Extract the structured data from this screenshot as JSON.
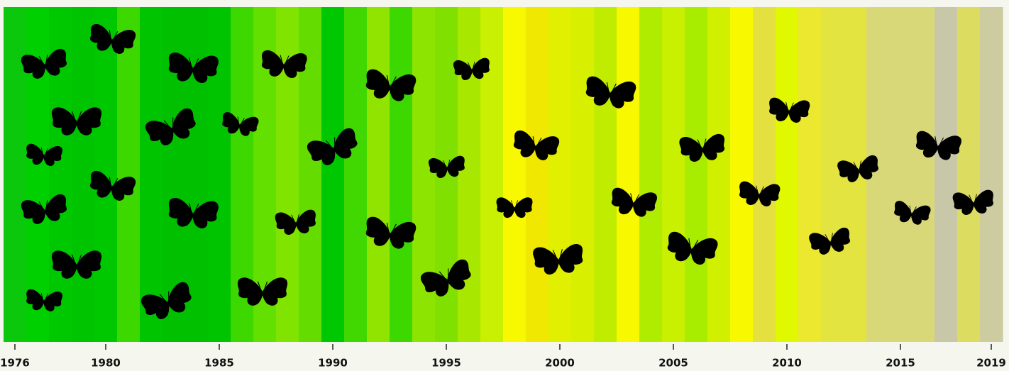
{
  "chart_data": {
    "type": "stripes",
    "x": [
      1976,
      1977,
      1978,
      1979,
      1980,
      1981,
      1982,
      1983,
      1984,
      1985,
      1986,
      1987,
      1988,
      1989,
      1990,
      1991,
      1992,
      1993,
      1994,
      1995,
      1996,
      1997,
      1998,
      1999,
      2000,
      2001,
      2002,
      2003,
      2004,
      2005,
      2006,
      2007,
      2008,
      2009,
      2010,
      2011,
      2012,
      2013,
      2014,
      2015,
      2016,
      2017,
      2018,
      2019
    ],
    "colors": [
      "#0cc80c",
      "#00d000",
      "#00c800",
      "#00c400",
      "#00c800",
      "#3cd800",
      "#00c400",
      "#00c000",
      "#00c000",
      "#00c400",
      "#3cd800",
      "#64e000",
      "#80e400",
      "#64dc00",
      "#00c800",
      "#40d800",
      "#90e400",
      "#3cd800",
      "#8ce400",
      "#80e000",
      "#a8e800",
      "#c8f000",
      "#f8f800",
      "#f0e800",
      "#e0f000",
      "#d8f000",
      "#c0ec00",
      "#f8f800",
      "#b0ec00",
      "#c8f000",
      "#a8ec00",
      "#d0f000",
      "#f8f800",
      "#e4e040",
      "#e0f800",
      "#ece830",
      "#e4e440",
      "#e4e440",
      "#d8d878",
      "#d8d878",
      "#d8d878",
      "#c8c8a8",
      "#dcdc60",
      "#cccca0"
    ],
    "xlim": [
      1975.5,
      2019.5
    ],
    "xticks": [
      1976,
      1980,
      1985,
      1990,
      1995,
      2000,
      2005,
      2010,
      2015,
      2019
    ]
  }
}
